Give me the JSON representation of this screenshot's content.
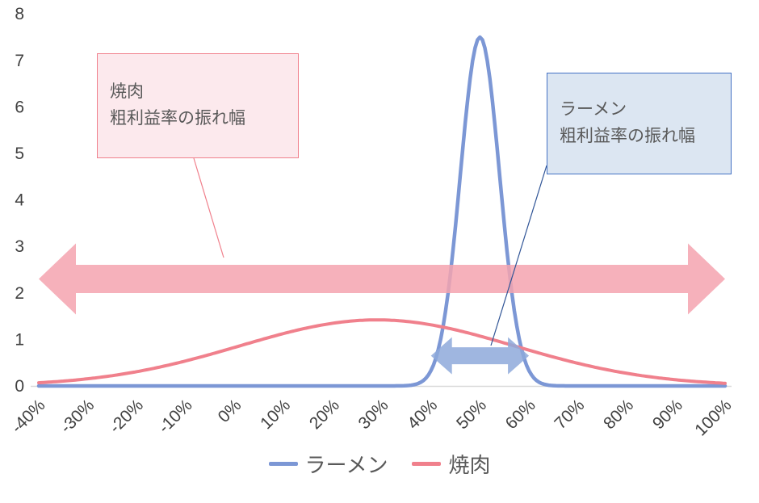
{
  "page": {
    "background": "#ffffff"
  },
  "chart_data": {
    "type": "line",
    "title": "",
    "x_tick_labels": [
      "-40%",
      "-30%",
      "-20%",
      "-10%",
      "0%",
      "10%",
      "20%",
      "30%",
      "40%",
      "50%",
      "60%",
      "70%",
      "80%",
      "90%",
      "100%"
    ],
    "x_values_pct": [
      -40,
      -30,
      -20,
      -10,
      0,
      10,
      20,
      30,
      40,
      50,
      60,
      70,
      80,
      90,
      100
    ],
    "y_tick_labels": [
      "0",
      "1",
      "2",
      "3",
      "4",
      "5",
      "6",
      "7",
      "8"
    ],
    "xlim_pct": [
      -40,
      100
    ],
    "ylim": [
      0,
      8
    ],
    "grid": "off",
    "legend_position": "bottom",
    "series": [
      {
        "name": "ラーメン",
        "color": "#7C97D5",
        "shape": "normal-distribution",
        "mean_pct": 50,
        "sd_pct": 4,
        "peak": 7.5,
        "values": [
          0,
          0,
          0,
          0,
          0,
          0,
          0,
          0,
          0.33,
          7.5,
          0.33,
          0,
          0,
          0,
          0
        ]
      },
      {
        "name": "焼肉",
        "color": "#F0808C",
        "shape": "normal-distribution",
        "mean_pct": 29,
        "sd_pct": 28,
        "peak": 1.42,
        "values": [
          0.07,
          0.15,
          0.31,
          0.54,
          0.83,
          1.13,
          1.35,
          1.42,
          1.32,
          1.07,
          0.77,
          0.49,
          0.27,
          0.13,
          0.06
        ]
      }
    ]
  },
  "axis": {
    "text_color": "#404040",
    "line_color": "#D9D9D9"
  },
  "annotations": {
    "yakiniku_box": {
      "line1": "焼肉",
      "line2": "粗利益率の振れ幅",
      "fill": "#FCE9ED",
      "border": "#F0808C",
      "text_color": "#595959"
    },
    "ramen_box": {
      "line1": "ラーメン",
      "line2": "粗利益率の振れ幅",
      "fill": "#DCE6F2",
      "border": "#4472C4",
      "text_color": "#595959"
    },
    "yakiniku_arrow": {
      "from_pct": -40,
      "to_pct": 100,
      "at_value": 2.3,
      "color": "#F4A3AF"
    },
    "ramen_arrow": {
      "from_pct": 40,
      "to_pct": 60,
      "at_value": 0.65,
      "color": "#8EA9DB"
    }
  },
  "legend": {
    "text_color": "#595959",
    "items": [
      {
        "label": "ラーメン",
        "color": "#7C97D5"
      },
      {
        "label": "焼肉",
        "color": "#F0808C"
      }
    ]
  }
}
